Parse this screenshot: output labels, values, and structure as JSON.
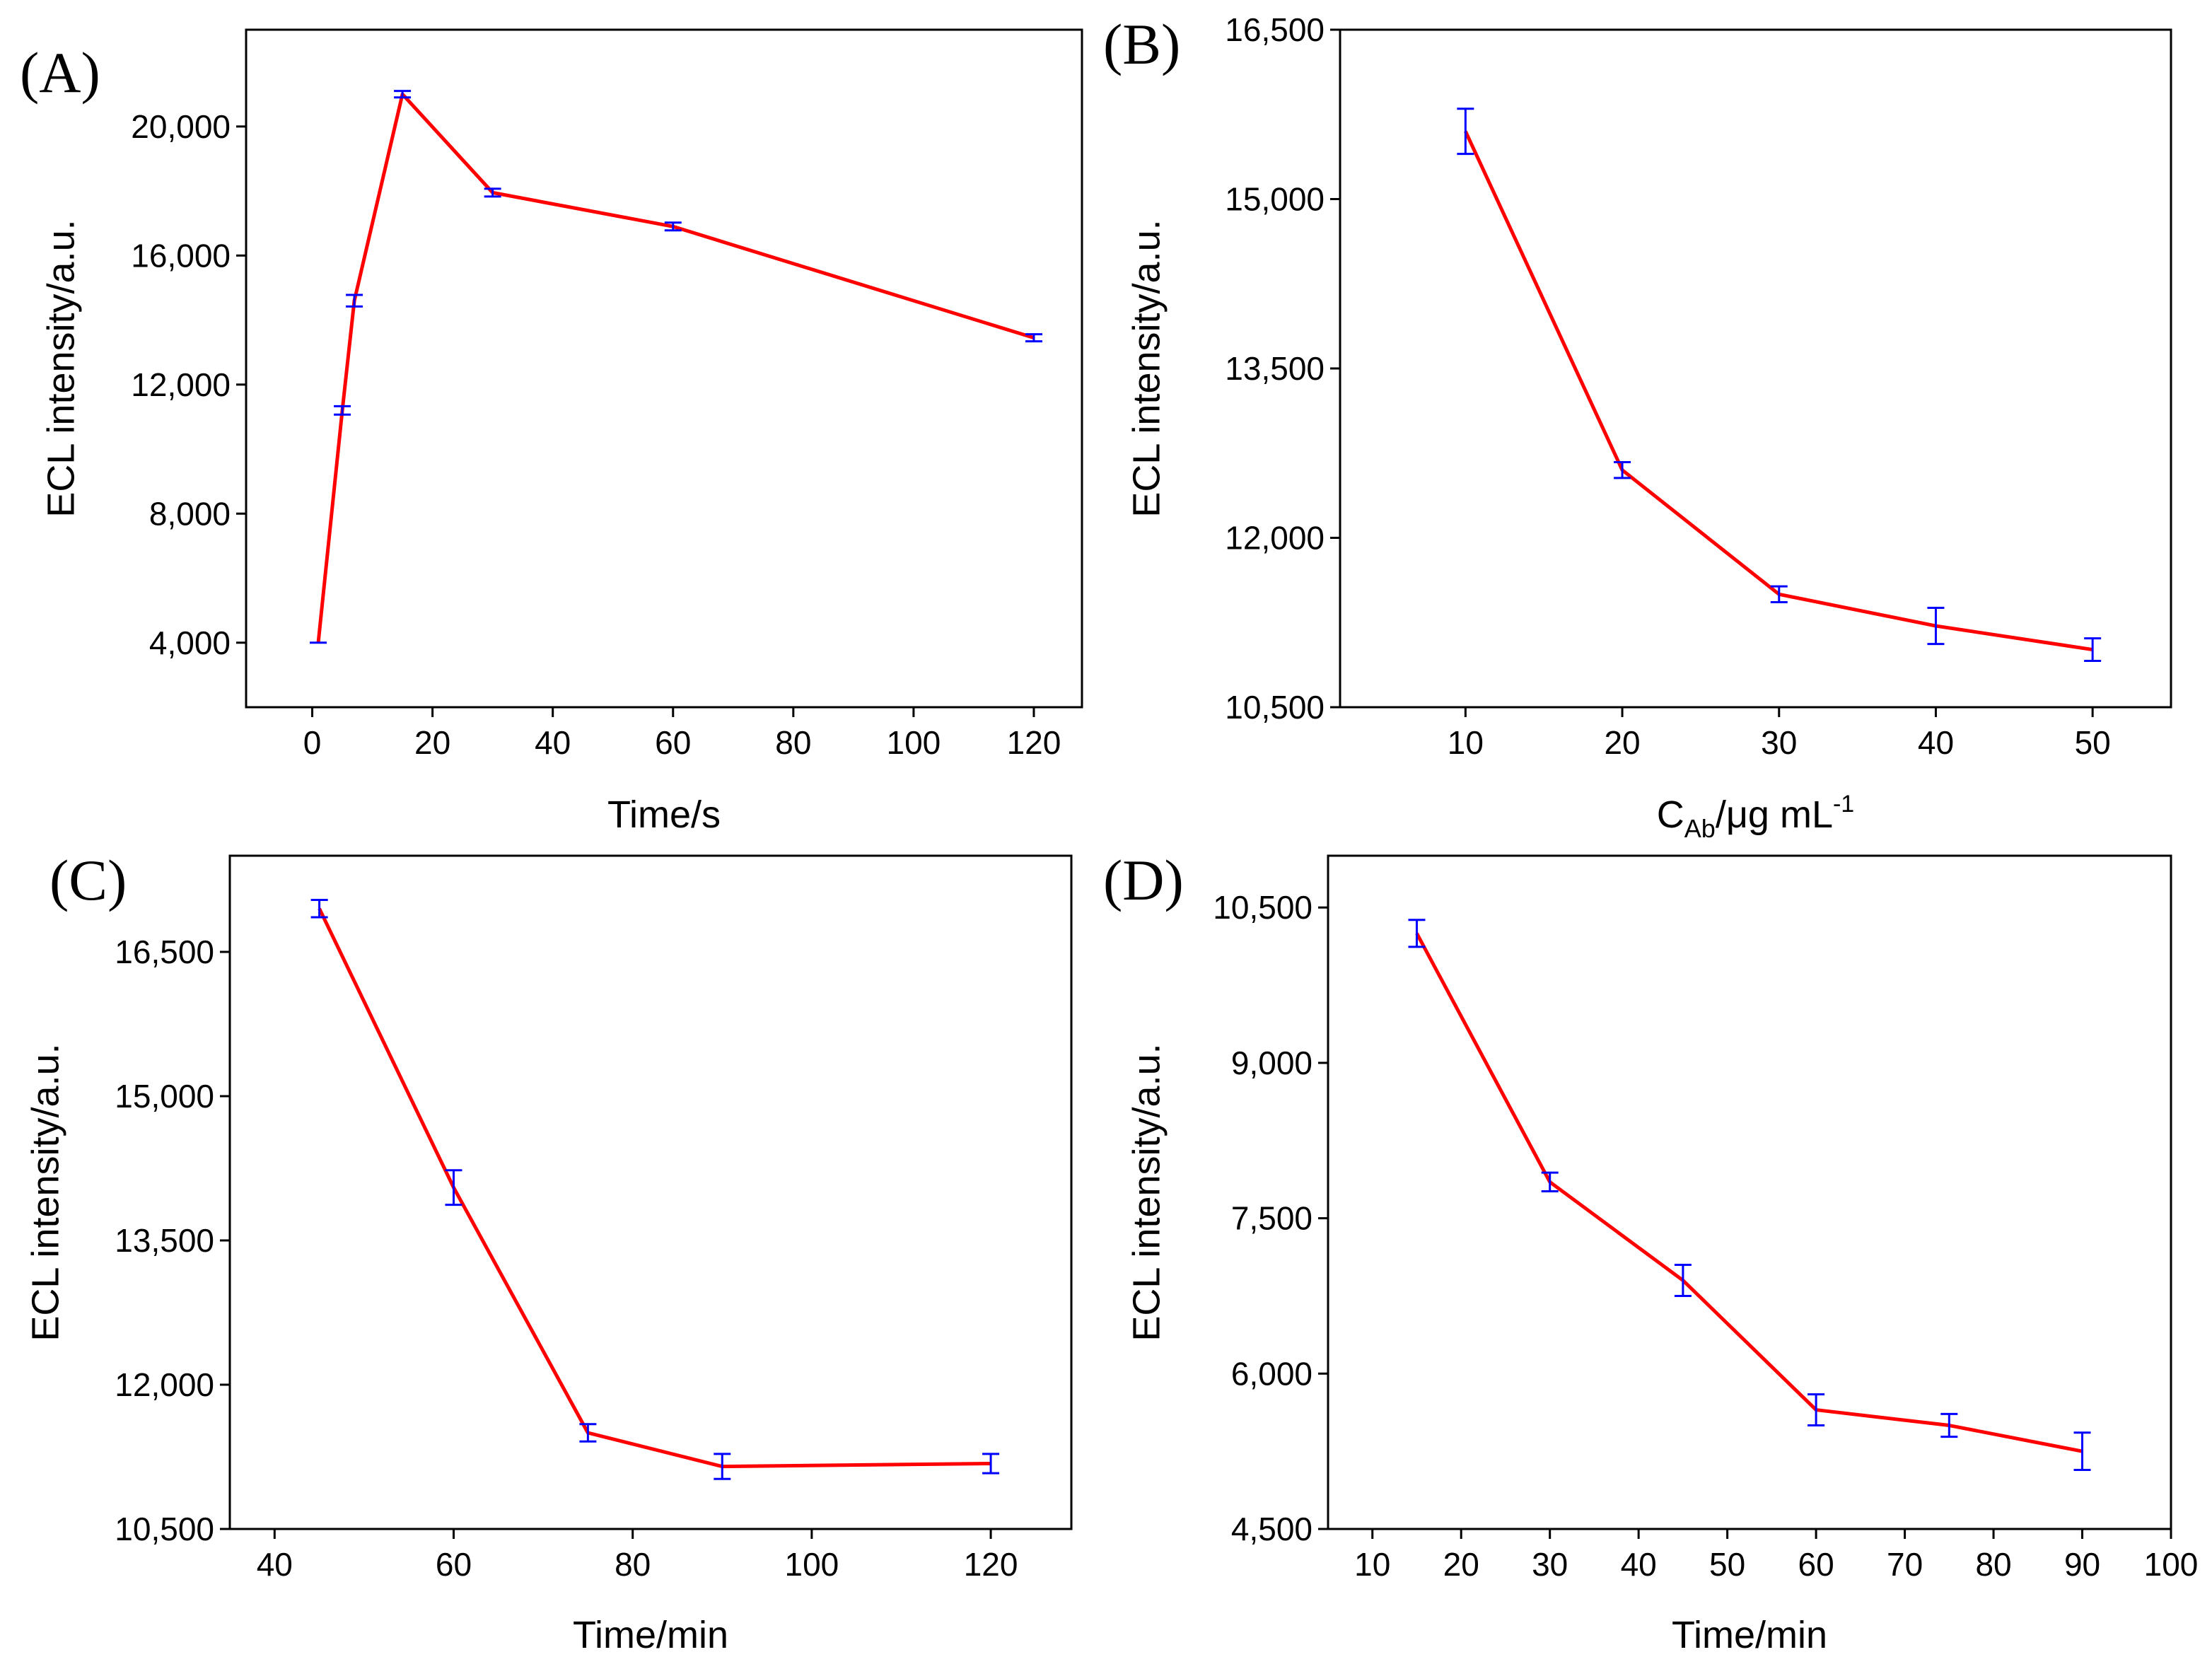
{
  "colors": {
    "line": "#ff0000",
    "error_bar": "#0000ff",
    "axis": "#000000"
  },
  "chart_data": [
    {
      "id": "A",
      "type": "line",
      "panel_label": "(A)",
      "xlabel": "Time/s",
      "ylabel": "ECL intensity/a.u.",
      "xlim": [
        -11,
        128
      ],
      "ylim": [
        2000,
        23000
      ],
      "xticks": [
        0,
        20,
        40,
        60,
        80,
        100,
        120
      ],
      "yticks": [
        4000,
        8000,
        12000,
        16000,
        20000
      ],
      "xtick_labels": [
        "0",
        "20",
        "40",
        "60",
        "80",
        "100",
        "120"
      ],
      "ytick_labels": [
        "4,000",
        "8,000",
        "12,000",
        "16,000",
        "20,000"
      ],
      "series": [
        {
          "name": "ECL intensity",
          "x": [
            1,
            5,
            7,
            15,
            30,
            60,
            120
          ],
          "y": [
            4000,
            11200,
            14600,
            21000,
            17950,
            16900,
            13450
          ],
          "err": [
            0,
            130,
            180,
            100,
            120,
            120,
            110
          ]
        }
      ]
    },
    {
      "id": "B",
      "type": "line",
      "panel_label": "(B)",
      "xlabel_parts": {
        "main": "C",
        "sub": "Ab",
        "rest": "/μg mL",
        "sup": "-1"
      },
      "ylabel": "ECL intensity/a.u.",
      "xlim": [
        2,
        55
      ],
      "ylim": [
        10500,
        16500
      ],
      "xticks": [
        10,
        20,
        30,
        40,
        50
      ],
      "yticks": [
        10500,
        12000,
        13500,
        15000,
        16500
      ],
      "xtick_labels": [
        "10",
        "20",
        "30",
        "40",
        "50"
      ],
      "ytick_labels": [
        "10,500",
        "12,000",
        "13,500",
        "15,000",
        "16,500"
      ],
      "series": [
        {
          "name": "ECL intensity",
          "x": [
            10,
            20,
            30,
            40,
            50
          ],
          "y": [
            15600,
            12600,
            11500,
            11220,
            11010
          ],
          "err": [
            200,
            70,
            70,
            160,
            100
          ]
        }
      ]
    },
    {
      "id": "C",
      "type": "line",
      "panel_label": "(C)",
      "xlabel": "Time/min",
      "ylabel": "ECL intensity/a.u.",
      "xlim": [
        35,
        129
      ],
      "ylim": [
        10500,
        17500
      ],
      "xticks": [
        40,
        60,
        80,
        100,
        120
      ],
      "yticks": [
        10500,
        12000,
        13500,
        15000,
        16500
      ],
      "xtick_labels": [
        "40",
        "60",
        "80",
        "100",
        "120"
      ],
      "ytick_labels": [
        "10,500",
        "12,000",
        "13,500",
        "15,000",
        "16,500"
      ],
      "series": [
        {
          "name": "ECL intensity",
          "x": [
            45,
            60,
            75,
            90,
            120
          ],
          "y": [
            16950,
            14050,
            11500,
            11150,
            11180
          ],
          "err": [
            90,
            180,
            90,
            130,
            100
          ]
        }
      ]
    },
    {
      "id": "D",
      "type": "line",
      "panel_label": "(D)",
      "xlabel": "Time/min",
      "ylabel": "ECL intensity/a.u.",
      "xlim": [
        5,
        100
      ],
      "ylim": [
        4500,
        11000
      ],
      "xticks": [
        10,
        20,
        30,
        40,
        50,
        60,
        70,
        80,
        90,
        100
      ],
      "yticks": [
        4500,
        6000,
        7500,
        9000,
        10500
      ],
      "xtick_labels": [
        "10",
        "20",
        "30",
        "40",
        "50",
        "60",
        "70",
        "80",
        "90",
        "100"
      ],
      "ytick_labels": [
        "4,500",
        "6,000",
        "7,500",
        "9,000",
        "10,500"
      ],
      "series": [
        {
          "name": "ECL intensity",
          "x": [
            15,
            30,
            45,
            60,
            75,
            90
          ],
          "y": [
            10250,
            7850,
            6900,
            5650,
            5500,
            5250
          ],
          "err": [
            130,
            90,
            150,
            150,
            110,
            180
          ]
        }
      ]
    }
  ]
}
